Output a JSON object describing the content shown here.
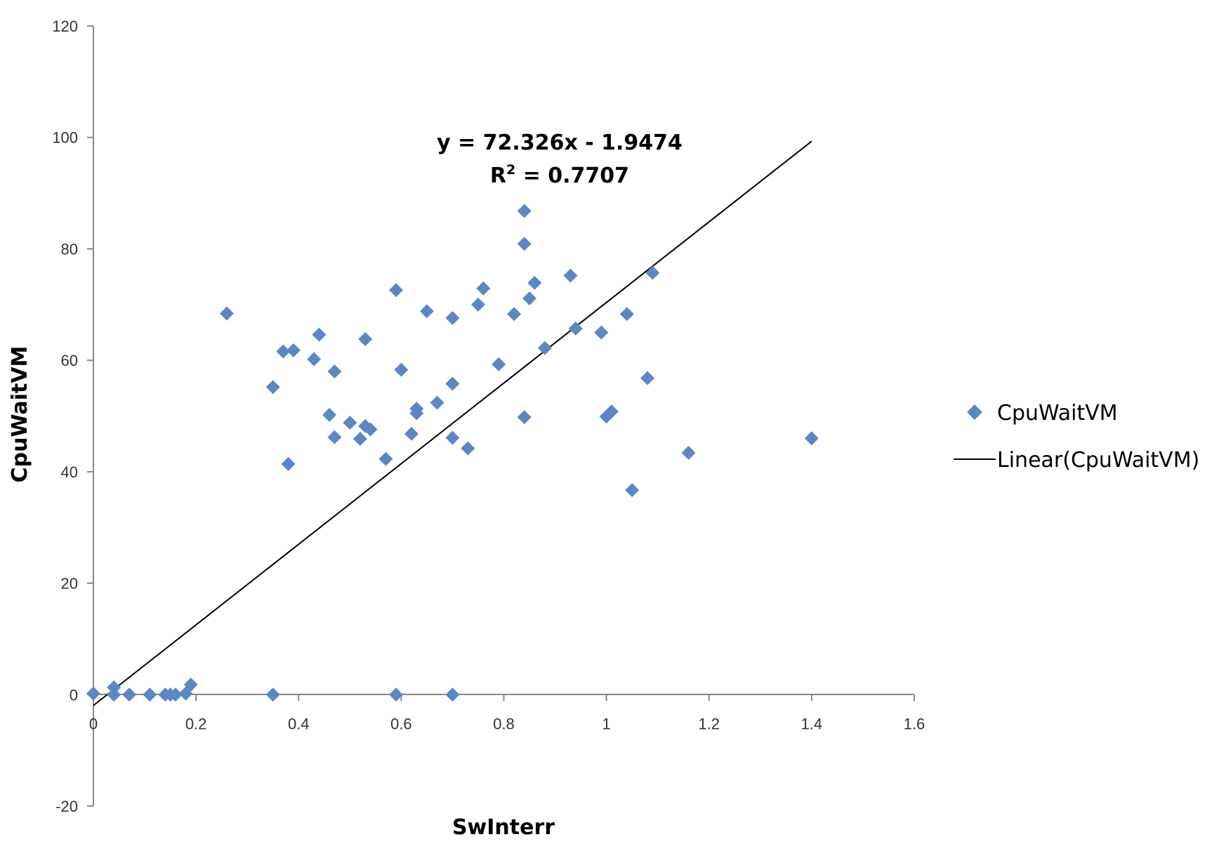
{
  "chart_data": {
    "type": "scatter",
    "xlabel": "SwInterr",
    "ylabel": "CpuWaitVM",
    "xlim": [
      0,
      1.6
    ],
    "ylim": [
      -20,
      120
    ],
    "x_ticks": [
      "0",
      "0.2",
      "0.4",
      "0.6",
      "0.8",
      "1",
      "1.2",
      "1.4",
      "1.6"
    ],
    "y_ticks": [
      "-20",
      "0",
      "20",
      "40",
      "60",
      "80",
      "100",
      "120"
    ],
    "x_tick_values": [
      0,
      0.2,
      0.4,
      0.6,
      0.8,
      1.0,
      1.2,
      1.4,
      1.6
    ],
    "y_tick_values": [
      -20,
      0,
      20,
      40,
      60,
      80,
      100,
      120
    ],
    "grid": false,
    "legend_position": "right",
    "series": [
      {
        "name": "CpuWaitVM",
        "color": "#5B87C5",
        "marker": "diamond",
        "points": [
          [
            0,
            0.2
          ],
          [
            0.04,
            1.3
          ],
          [
            0.04,
            0
          ],
          [
            0.07,
            0
          ],
          [
            0.11,
            0
          ],
          [
            0.14,
            0
          ],
          [
            0.15,
            0
          ],
          [
            0.16,
            0
          ],
          [
            0.18,
            0.2
          ],
          [
            0.19,
            1.8
          ],
          [
            0.35,
            0
          ],
          [
            0.59,
            0
          ],
          [
            0.7,
            0
          ],
          [
            0.26,
            68.4
          ],
          [
            0.35,
            55.2
          ],
          [
            0.37,
            61.6
          ],
          [
            0.38,
            41.4
          ],
          [
            0.39,
            61.8
          ],
          [
            0.43,
            60.2
          ],
          [
            0.44,
            64.6
          ],
          [
            0.46,
            50.2
          ],
          [
            0.47,
            58.0
          ],
          [
            0.47,
            46.2
          ],
          [
            0.5,
            48.8
          ],
          [
            0.52,
            45.9
          ],
          [
            0.53,
            63.8
          ],
          [
            0.53,
            48.2
          ],
          [
            0.54,
            47.6
          ],
          [
            0.57,
            42.3
          ],
          [
            0.59,
            72.6
          ],
          [
            0.6,
            58.3
          ],
          [
            0.62,
            46.8
          ],
          [
            0.63,
            51.3
          ],
          [
            0.63,
            50.5
          ],
          [
            0.65,
            68.8
          ],
          [
            0.67,
            52.4
          ],
          [
            0.7,
            67.6
          ],
          [
            0.7,
            55.8
          ],
          [
            0.7,
            46.1
          ],
          [
            0.73,
            44.2
          ],
          [
            0.75,
            70.0
          ],
          [
            0.76,
            72.9
          ],
          [
            0.79,
            59.3
          ],
          [
            0.82,
            68.3
          ],
          [
            0.84,
            86.8
          ],
          [
            0.84,
            80.9
          ],
          [
            0.84,
            49.8
          ],
          [
            0.85,
            71.1
          ],
          [
            0.86,
            73.9
          ],
          [
            0.88,
            62.2
          ],
          [
            0.93,
            75.2
          ],
          [
            0.94,
            65.7
          ],
          [
            0.99,
            65.0
          ],
          [
            1.0,
            49.9
          ],
          [
            1.01,
            50.8
          ],
          [
            1.04,
            68.3
          ],
          [
            1.05,
            36.7
          ],
          [
            1.08,
            56.8
          ],
          [
            1.09,
            75.7
          ],
          [
            1.16,
            43.4
          ],
          [
            1.4,
            46.0
          ]
        ]
      }
    ],
    "trendline": {
      "name": "Linear(CpuWaitVM)",
      "color": "#000000",
      "slope": 72.326,
      "intercept": -1.9474,
      "x_range": [
        0,
        1.4
      ],
      "equation": "y = 72.326x - 1.9474",
      "r_squared_prefix": "R",
      "r_squared_sup": "2",
      "r_squared_value": " = 0.7707"
    }
  }
}
